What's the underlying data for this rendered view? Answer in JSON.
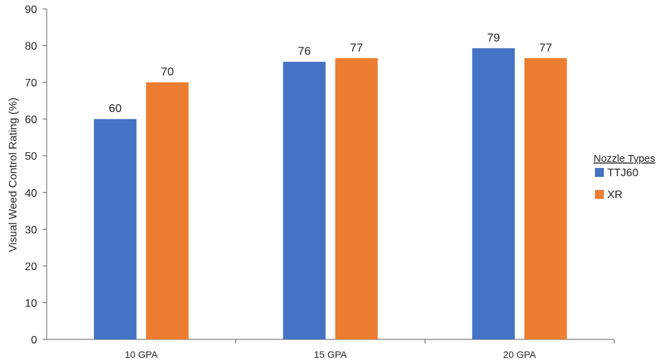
{
  "chart_data": {
    "type": "bar",
    "categories": [
      "10 GPA",
      "15 GPA",
      "20 GPA"
    ],
    "series": [
      {
        "name": "TTJ60",
        "values": [
          60,
          75.6,
          79.3
        ],
        "labels": [
          "60",
          "76",
          "79"
        ],
        "color": "#4472C4"
      },
      {
        "name": "XR",
        "values": [
          70,
          76.6,
          76.6
        ],
        "labels": [
          "70",
          "77",
          "77"
        ],
        "color": "#ED7D31"
      }
    ],
    "title": "",
    "xlabel": "",
    "ylabel": "Visual Weed Control Rating (%)",
    "ylim": [
      0,
      90
    ],
    "yticks": [
      0,
      10,
      20,
      30,
      40,
      50,
      60,
      70,
      80,
      90
    ],
    "grid": false,
    "legend": {
      "title": "Nozzle Types",
      "position": "right"
    }
  }
}
